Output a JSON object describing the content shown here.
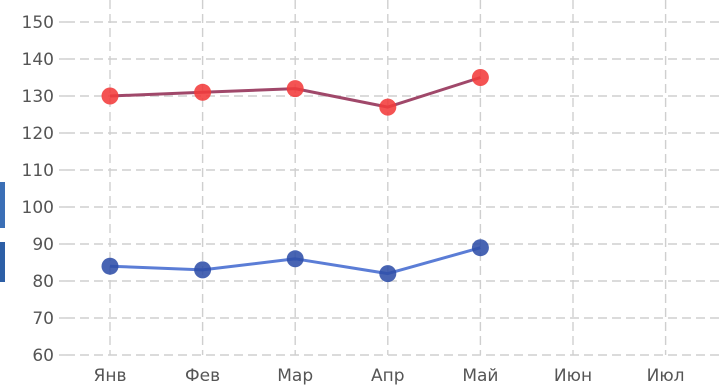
{
  "chart_data": {
    "type": "line",
    "categories": [
      "Янв",
      "Фев",
      "Мар",
      "Апр",
      "Май",
      "Июн",
      "Июл"
    ],
    "ylim": [
      60,
      150
    ],
    "yticks": [
      60,
      70,
      80,
      90,
      100,
      110,
      120,
      130,
      140,
      150
    ],
    "grid": true,
    "series": [
      {
        "values": [
          130,
          131,
          132,
          127,
          135,
          null,
          null
        ],
        "line_color": "#a0486a",
        "marker_color": "#f23b3b"
      },
      {
        "values": [
          84,
          83,
          86,
          82,
          89,
          null,
          null
        ],
        "line_color": "#5b7dd6",
        "marker_color": "#2f4fa8"
      }
    ]
  }
}
